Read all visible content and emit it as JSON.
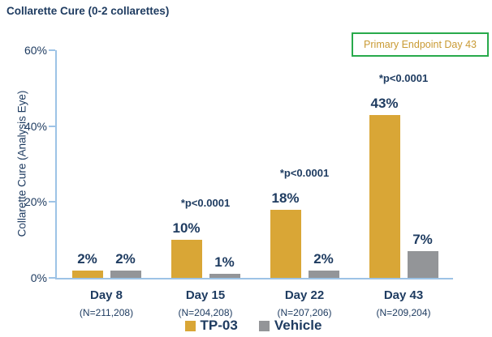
{
  "title": "Collarette Cure (0-2 collarettes)",
  "badge": {
    "label": "Primary Endpoint Day 43"
  },
  "colors": {
    "navy": "#1F3C61",
    "gold": "#D9A636",
    "gray": "#939598",
    "axis_blue": "#9DC3E6",
    "badge_border_green": "#28AA4B",
    "badge_text_gold": "#C99A33"
  },
  "chart_data": {
    "type": "bar",
    "title": "Collarette Cure (0-2 collarettes)",
    "xlabel": "",
    "ylabel": "Collarette Cure (Analysis Eye)",
    "ylim": [
      0,
      60
    ],
    "yticks": [
      "0%",
      "20%",
      "40%",
      "60%"
    ],
    "grid": false,
    "legend_position": "bottom",
    "categories": [
      "Day 8",
      "Day 15",
      "Day 22",
      "Day 43"
    ],
    "category_sublabels": [
      "(N=211,208)",
      "(N=204,208)",
      "(N=207,206)",
      "(N=209,204)"
    ],
    "series": [
      {
        "name": "TP-03",
        "color": "#D9A636",
        "values": [
          2,
          10,
          18,
          43
        ],
        "value_labels": [
          "2%",
          "10%",
          "18%",
          "43%"
        ]
      },
      {
        "name": "Vehicle",
        "color": "#939598",
        "values": [
          2,
          1,
          2,
          7
        ],
        "value_labels": [
          "2%",
          "1%",
          "2%",
          "7%"
        ]
      }
    ],
    "annotations": [
      "",
      "*p<0.0001",
      "*p<0.0001",
      "*p<0.0001"
    ]
  }
}
